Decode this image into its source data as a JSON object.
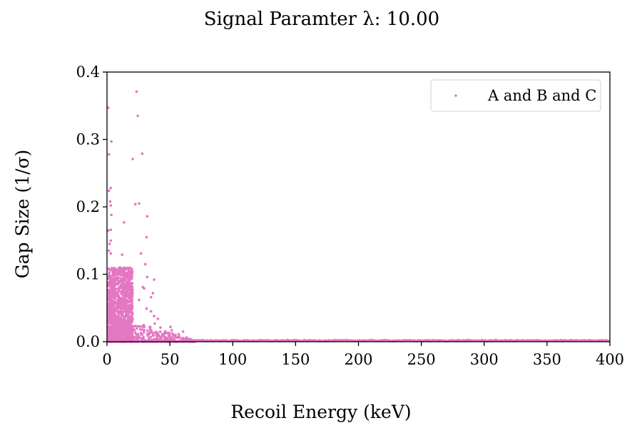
{
  "chart_data": {
    "type": "scatter",
    "title": "Signal Paramter λ: 10.00",
    "xlabel": "Recoil Energy (keV)",
    "ylabel": "Gap Size (1/σ)",
    "xlim": [
      0,
      400
    ],
    "ylim": [
      0,
      0.4
    ],
    "xticks": [
      "0",
      "50",
      "100",
      "150",
      "200",
      "250",
      "300",
      "350",
      "400"
    ],
    "yticks": [
      "0.0",
      "0.1",
      "0.2",
      "0.3",
      "0.4"
    ],
    "grid": false,
    "legend_position": "top-right",
    "series": [
      {
        "name": "A and B and C",
        "color": "#e377c2",
        "points": [
          [
            1.0,
            0.347
          ],
          [
            3.5,
            0.297
          ],
          [
            1.5,
            0.278
          ],
          [
            23.5,
            0.371
          ],
          [
            24.5,
            0.335
          ],
          [
            28.0,
            0.279
          ],
          [
            20.5,
            0.271
          ],
          [
            25.5,
            0.205
          ],
          [
            22.5,
            0.204
          ],
          [
            3.0,
            0.228
          ],
          [
            1.5,
            0.224
          ],
          [
            2.5,
            0.208
          ],
          [
            3.0,
            0.202
          ],
          [
            3.5,
            0.188
          ],
          [
            32.0,
            0.186
          ],
          [
            13.5,
            0.177
          ],
          [
            3.0,
            0.166
          ],
          [
            1.0,
            0.165
          ],
          [
            31.5,
            0.155
          ],
          [
            3.0,
            0.15
          ],
          [
            2.0,
            0.145
          ],
          [
            1.5,
            0.135
          ],
          [
            3.0,
            0.131
          ],
          [
            12.0,
            0.129
          ],
          [
            27.0,
            0.131
          ],
          [
            30.5,
            0.115
          ],
          [
            19.5,
            0.105
          ],
          [
            37.5,
            0.092
          ],
          [
            32.0,
            0.096
          ],
          [
            17.5,
            0.108
          ],
          [
            10.5,
            0.11
          ],
          [
            6.5,
            0.108
          ],
          [
            13.0,
            0.097
          ],
          [
            28.5,
            0.081
          ],
          [
            29.5,
            0.079
          ],
          [
            35.0,
            0.066
          ],
          [
            36.5,
            0.072
          ],
          [
            25.5,
            0.062
          ],
          [
            31.5,
            0.049
          ],
          [
            35.0,
            0.045
          ],
          [
            37.5,
            0.038
          ],
          [
            40.5,
            0.034
          ],
          [
            38.0,
            0.027
          ],
          [
            34.0,
            0.022
          ],
          [
            42.5,
            0.021
          ],
          [
            50.5,
            0.022
          ],
          [
            51.5,
            0.017
          ],
          [
            46.0,
            0.014
          ],
          [
            60.5,
            0.015
          ],
          [
            44.0,
            0.008
          ],
          [
            55.0,
            0.006
          ],
          [
            65.0,
            0.004
          ],
          [
            27.0,
            0.013
          ],
          [
            40.0,
            0.012
          ],
          [
            57.0,
            0.011
          ]
        ]
      }
    ]
  }
}
